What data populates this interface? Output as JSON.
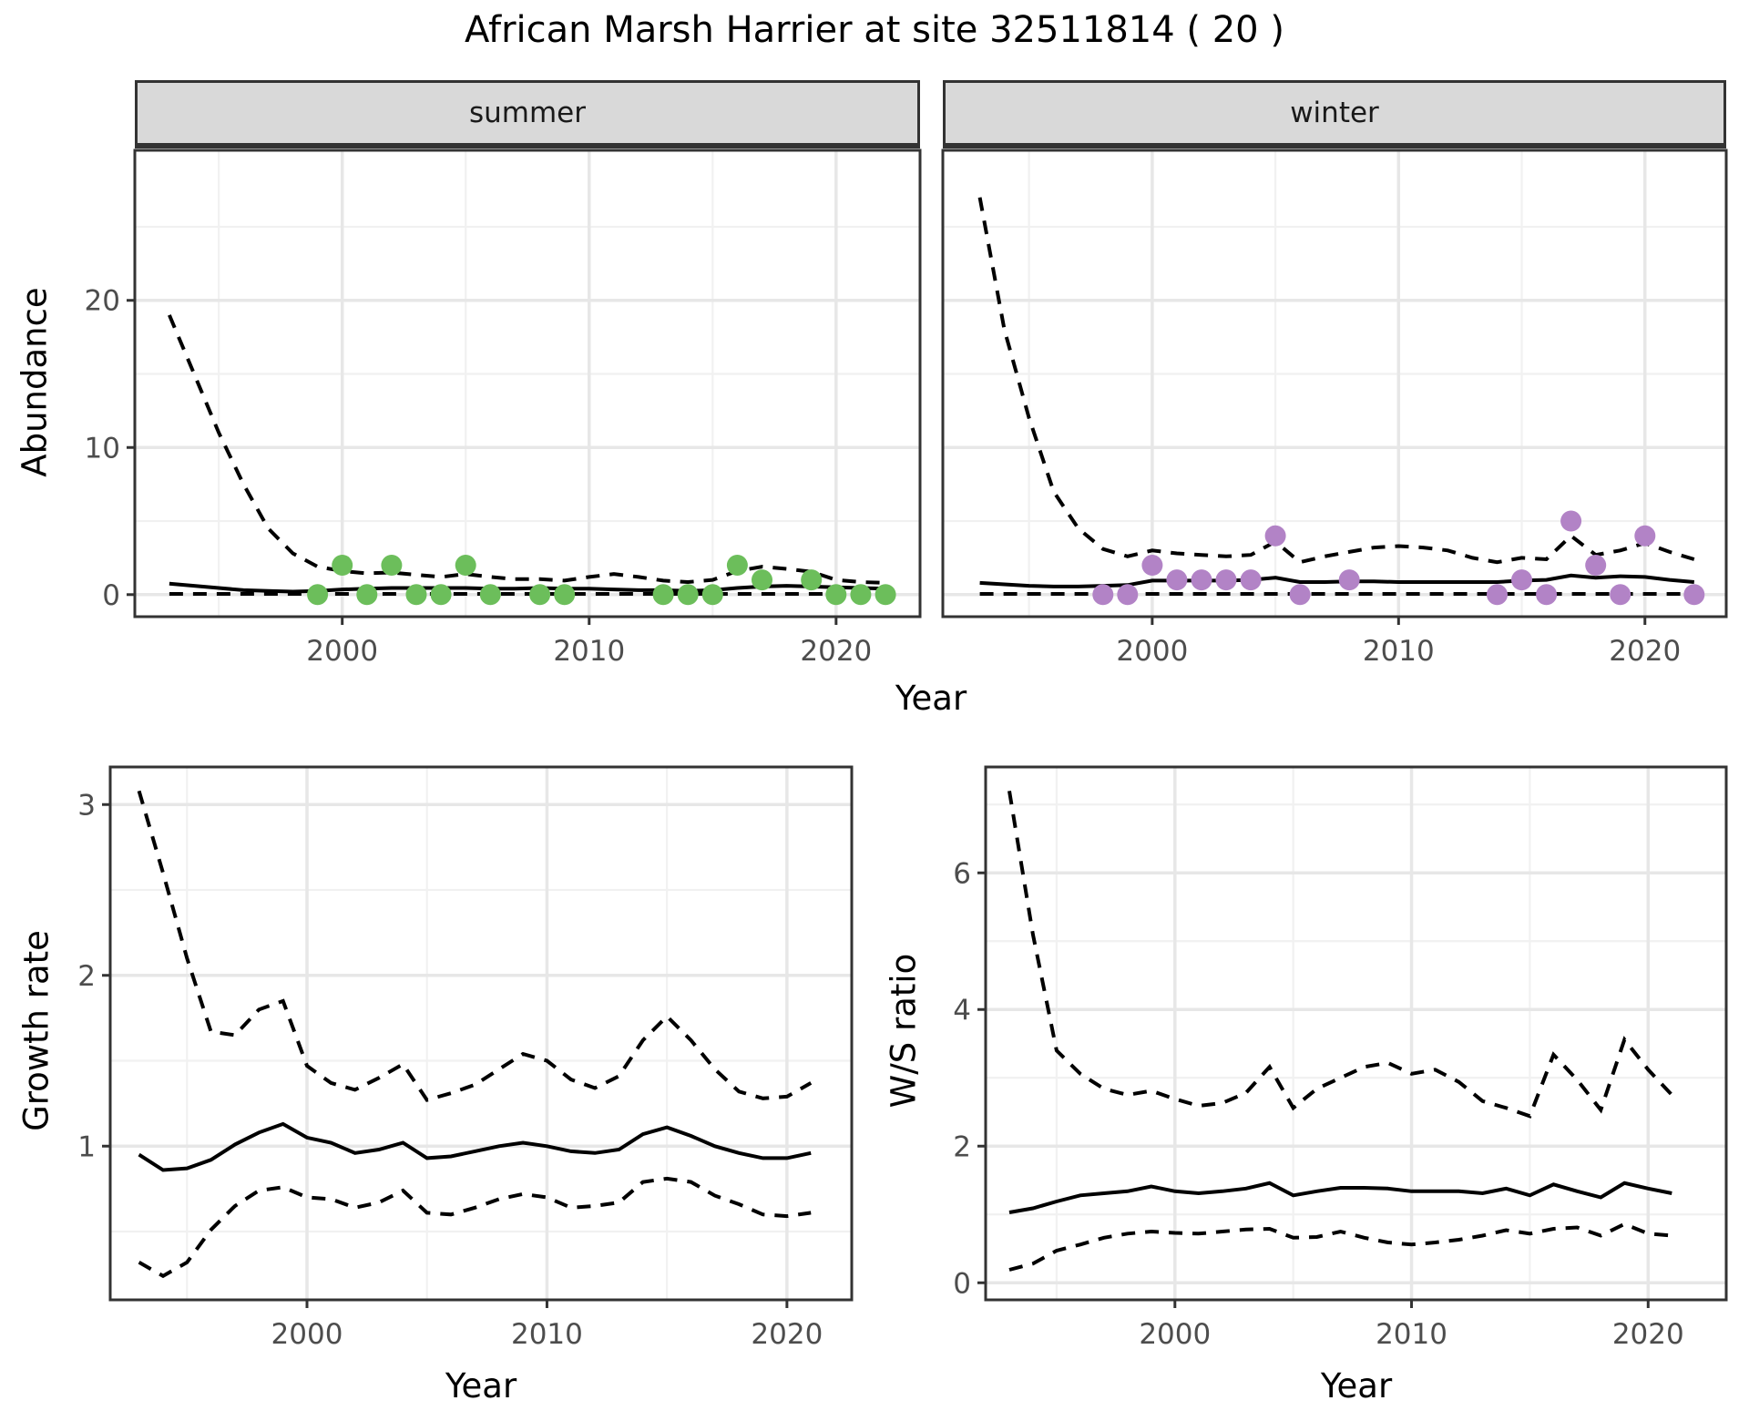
{
  "title": "African Marsh Harrier at site 32511814 ( 20 )",
  "axis_titles": {
    "abundance": "Abundance",
    "growth": "Growth rate",
    "ratio": "W/S ratio",
    "year": "Year"
  },
  "colors": {
    "summer_point": "#6cbe5b",
    "winter_point": "#b283c6",
    "fit_line": "#000000",
    "ci_line": "#000000",
    "grid_major": "#e7e7e7",
    "grid_minor": "#f1f1f1",
    "panel_border": "#333333",
    "strip_bg": "#d9d9d9",
    "tick_label": "#4d4d4d",
    "background": "#ffffff"
  },
  "chart_data": [
    {
      "id": "abundance_summer",
      "type": "line",
      "facet": "summer",
      "ylabel": "Abundance",
      "xlabel": "Year",
      "xlim": [
        1991.6,
        2023.4
      ],
      "ylim": [
        -1.5,
        30.2
      ],
      "x_ticks": {
        "major": [
          2000,
          2010,
          2020
        ],
        "minor": [
          1995,
          2005,
          2015
        ],
        "labels": [
          "2000",
          "2010",
          "2020"
        ]
      },
      "y_ticks": {
        "major": [
          0,
          10,
          20
        ],
        "minor": [
          5,
          15,
          25
        ],
        "labels": [
          "0",
          "10",
          "20"
        ]
      },
      "years": [
        1993,
        1994,
        1995,
        1996,
        1997,
        1998,
        1999,
        2000,
        2001,
        2002,
        2003,
        2004,
        2005,
        2006,
        2007,
        2008,
        2009,
        2010,
        2011,
        2012,
        2013,
        2014,
        2015,
        2016,
        2017,
        2018,
        2019,
        2020,
        2021,
        2022
      ],
      "series": [
        {
          "name": "fit",
          "style": "solid",
          "values": [
            0.75,
            0.6,
            0.45,
            0.3,
            0.25,
            0.2,
            0.25,
            0.35,
            0.4,
            0.45,
            0.45,
            0.45,
            0.45,
            0.4,
            0.4,
            0.45,
            0.4,
            0.4,
            0.35,
            0.3,
            0.3,
            0.25,
            0.3,
            0.45,
            0.55,
            0.6,
            0.55,
            0.5,
            0.45,
            0.4
          ]
        },
        {
          "name": "upper_ci",
          "style": "dashed",
          "values": [
            19,
            15,
            11,
            7.5,
            4.5,
            2.8,
            1.9,
            1.6,
            1.45,
            1.5,
            1.35,
            1.2,
            1.4,
            1.2,
            1.05,
            1.05,
            0.95,
            1.2,
            1.4,
            1.2,
            0.95,
            0.85,
            1.0,
            1.6,
            1.9,
            1.75,
            1.55,
            1.0,
            0.85,
            0.8
          ]
        },
        {
          "name": "lower_ci",
          "style": "dashed",
          "values": [
            0.05,
            0.05,
            0.05,
            0.05,
            0.05,
            0.05,
            0.05,
            0.05,
            0.05,
            0.05,
            0.05,
            0.05,
            0.05,
            0.05,
            0.05,
            0.05,
            0.05,
            0.05,
            0.05,
            0.05,
            0.05,
            0.05,
            0.05,
            0.05,
            0.05,
            0.05,
            0.05,
            0.05,
            0.05,
            0.05
          ]
        }
      ],
      "points": {
        "color_key": "summer_point",
        "years": [
          1999,
          2000,
          2001,
          2002,
          2003,
          2004,
          2005,
          2006,
          2008,
          2009,
          2013,
          2014,
          2015,
          2016,
          2017,
          2019,
          2020,
          2021,
          2022
        ],
        "values": [
          0,
          2,
          0,
          2,
          0,
          0,
          2,
          0,
          0,
          0,
          0,
          0,
          0,
          2,
          1,
          1,
          0,
          0,
          0
        ]
      }
    },
    {
      "id": "abundance_winter",
      "type": "line",
      "facet": "winter",
      "ylabel": "Abundance",
      "xlabel": "Year",
      "xlim": [
        1991.5,
        2023.3
      ],
      "ylim": [
        -1.5,
        30.2
      ],
      "x_ticks": {
        "major": [
          2000,
          2010,
          2020
        ],
        "minor": [
          1995,
          2005,
          2015
        ],
        "labels": [
          "2000",
          "2010",
          "2020"
        ]
      },
      "y_ticks": {
        "major": [
          0,
          10,
          20
        ],
        "minor": [
          5,
          15,
          25
        ],
        "labels": [
          "0",
          "10",
          "20"
        ]
      },
      "years": [
        1993,
        1994,
        1995,
        1996,
        1997,
        1998,
        1999,
        2000,
        2001,
        2002,
        2003,
        2004,
        2005,
        2006,
        2007,
        2008,
        2009,
        2010,
        2011,
        2012,
        2013,
        2014,
        2015,
        2016,
        2017,
        2018,
        2019,
        2020,
        2021,
        2022
      ],
      "series": [
        {
          "name": "fit",
          "style": "solid",
          "values": [
            0.8,
            0.7,
            0.6,
            0.55,
            0.55,
            0.6,
            0.65,
            0.95,
            0.95,
            0.95,
            0.95,
            1.0,
            1.15,
            0.85,
            0.85,
            0.9,
            0.9,
            0.85,
            0.85,
            0.85,
            0.85,
            0.85,
            0.95,
            1.0,
            1.3,
            1.15,
            1.25,
            1.2,
            1.0,
            0.85
          ]
        },
        {
          "name": "upper_ci",
          "style": "dashed",
          "values": [
            27,
            18,
            12,
            7,
            4.5,
            3.1,
            2.6,
            3.0,
            2.8,
            2.7,
            2.6,
            2.7,
            3.6,
            2.2,
            2.6,
            2.9,
            3.2,
            3.3,
            3.2,
            3.0,
            2.5,
            2.2,
            2.5,
            2.4,
            4.0,
            2.7,
            3.0,
            3.5,
            2.9,
            2.4
          ]
        },
        {
          "name": "lower_ci",
          "style": "dashed",
          "values": [
            0.05,
            0.05,
            0.05,
            0.05,
            0.05,
            0.05,
            0.05,
            0.05,
            0.05,
            0.05,
            0.05,
            0.05,
            0.05,
            0.05,
            0.05,
            0.05,
            0.05,
            0.05,
            0.05,
            0.05,
            0.05,
            0.05,
            0.05,
            0.05,
            0.05,
            0.05,
            0.05,
            0.05,
            0.05,
            0.05
          ]
        }
      ],
      "points": {
        "color_key": "winter_point",
        "years": [
          1998,
          1999,
          2000,
          2001,
          2002,
          2003,
          2004,
          2005,
          2006,
          2008,
          2014,
          2015,
          2016,
          2017,
          2018,
          2019,
          2020,
          2022
        ],
        "values": [
          0,
          0,
          2,
          1,
          1,
          1,
          1,
          4,
          0,
          1,
          0,
          1,
          0,
          5,
          2,
          0,
          4,
          0
        ]
      }
    },
    {
      "id": "growth_rate",
      "type": "line",
      "facet": null,
      "ylabel": "Growth rate",
      "xlabel": "Year",
      "xlim": [
        1991.8,
        2022.7
      ],
      "ylim": [
        0.1,
        3.22
      ],
      "x_ticks": {
        "major": [
          2000,
          2010,
          2020
        ],
        "minor": [
          1995,
          2005,
          2015
        ],
        "labels": [
          "2000",
          "2010",
          "2020"
        ]
      },
      "y_ticks": {
        "major": [
          1,
          2,
          3
        ],
        "minor": [
          0.5,
          1.5,
          2.5
        ],
        "labels": [
          "1",
          "2",
          "3"
        ]
      },
      "years": [
        1993,
        1994,
        1995,
        1996,
        1997,
        1998,
        1999,
        2000,
        2001,
        2002,
        2003,
        2004,
        2005,
        2006,
        2007,
        2008,
        2009,
        2010,
        2011,
        2012,
        2013,
        2014,
        2015,
        2016,
        2017,
        2018,
        2019,
        2020,
        2021
      ],
      "series": [
        {
          "name": "fit",
          "style": "solid",
          "values": [
            0.95,
            0.86,
            0.87,
            0.92,
            1.01,
            1.08,
            1.13,
            1.05,
            1.02,
            0.96,
            0.98,
            1.02,
            0.93,
            0.94,
            0.97,
            1.0,
            1.02,
            1.0,
            0.97,
            0.96,
            0.98,
            1.07,
            1.11,
            1.06,
            1.0,
            0.96,
            0.93,
            0.93,
            0.96
          ]
        },
        {
          "name": "upper_ci",
          "style": "dashed",
          "values": [
            3.08,
            2.6,
            2.1,
            1.67,
            1.65,
            1.8,
            1.85,
            1.47,
            1.37,
            1.33,
            1.4,
            1.48,
            1.27,
            1.31,
            1.36,
            1.45,
            1.54,
            1.5,
            1.39,
            1.34,
            1.41,
            1.62,
            1.76,
            1.62,
            1.45,
            1.32,
            1.28,
            1.29,
            1.37
          ]
        },
        {
          "name": "lower_ci",
          "style": "dashed",
          "values": [
            0.32,
            0.24,
            0.32,
            0.51,
            0.65,
            0.74,
            0.76,
            0.7,
            0.69,
            0.64,
            0.67,
            0.74,
            0.61,
            0.6,
            0.64,
            0.69,
            0.72,
            0.7,
            0.64,
            0.65,
            0.67,
            0.79,
            0.81,
            0.79,
            0.71,
            0.66,
            0.6,
            0.59,
            0.61
          ]
        }
      ],
      "points": null
    },
    {
      "id": "ws_ratio",
      "type": "line",
      "facet": null,
      "ylabel": "W/S ratio",
      "xlabel": "Year",
      "xlim": [
        1992.0,
        2023.3
      ],
      "ylim": [
        -0.25,
        7.55
      ],
      "x_ticks": {
        "major": [
          2000,
          2010,
          2020
        ],
        "minor": [
          1995,
          2005,
          2015
        ],
        "labels": [
          "2000",
          "2010",
          "2020"
        ]
      },
      "y_ticks": {
        "major": [
          0,
          2,
          4,
          6
        ],
        "minor": [
          1,
          3,
          5,
          7
        ],
        "labels": [
          "0",
          "2",
          "4",
          "6"
        ]
      },
      "years": [
        1993,
        1994,
        1995,
        1996,
        1997,
        1998,
        1999,
        2000,
        2001,
        2002,
        2003,
        2004,
        2005,
        2006,
        2007,
        2008,
        2009,
        2010,
        2011,
        2012,
        2013,
        2014,
        2015,
        2016,
        2017,
        2018,
        2019,
        2020,
        2021
      ],
      "series": [
        {
          "name": "fit",
          "style": "solid",
          "values": [
            1.03,
            1.09,
            1.19,
            1.28,
            1.31,
            1.34,
            1.41,
            1.34,
            1.31,
            1.34,
            1.38,
            1.46,
            1.28,
            1.34,
            1.39,
            1.39,
            1.38,
            1.34,
            1.34,
            1.34,
            1.31,
            1.38,
            1.28,
            1.44,
            1.34,
            1.25,
            1.46,
            1.38,
            1.31
          ]
        },
        {
          "name": "upper_ci",
          "style": "dashed",
          "values": [
            7.2,
            5.1,
            3.4,
            3.06,
            2.84,
            2.75,
            2.81,
            2.69,
            2.59,
            2.63,
            2.78,
            3.16,
            2.56,
            2.84,
            3.0,
            3.16,
            3.22,
            3.06,
            3.12,
            2.94,
            2.66,
            2.56,
            2.44,
            3.34,
            2.97,
            2.53,
            3.56,
            3.12,
            2.75
          ]
        },
        {
          "name": "lower_ci",
          "style": "dashed",
          "values": [
            0.19,
            0.28,
            0.47,
            0.56,
            0.66,
            0.72,
            0.75,
            0.73,
            0.72,
            0.75,
            0.78,
            0.79,
            0.66,
            0.67,
            0.75,
            0.66,
            0.59,
            0.56,
            0.59,
            0.63,
            0.69,
            0.77,
            0.72,
            0.79,
            0.81,
            0.69,
            0.86,
            0.72,
            0.69
          ]
        }
      ],
      "points": null
    }
  ]
}
